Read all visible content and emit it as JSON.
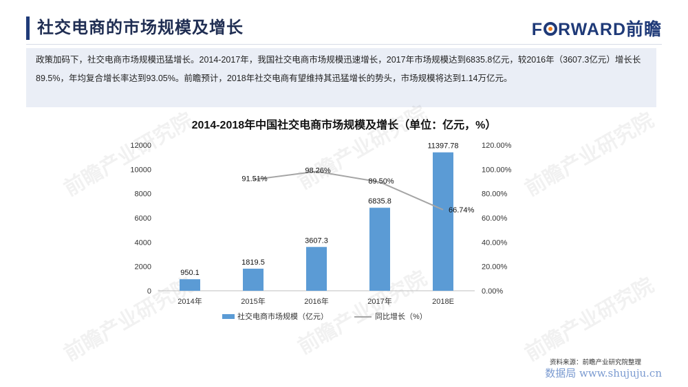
{
  "header": {
    "title": "社交电商的市场规模及增长",
    "logo_text_a": "F",
    "logo_text_b": "RWARD前瞻"
  },
  "summary": "政策加码下，社交电商市场规模迅猛增长。2014-2017年，我国社交电商市场规模迅速增长，2017年市场规模达到6835.8亿元，较2016年（3607.3亿元）增长长89.5%，年均复合增长率达到93.05%。前瞻预计，2018年社交电商有望维持其迅猛增长的势头，市场规模将达到1.14万亿元。",
  "chart_data": {
    "type": "bar",
    "title": "2014-2018年中国社交电商市场规模及增长（单位：亿元，%）",
    "categories": [
      "2014年",
      "2015年",
      "2016年",
      "2017年",
      "2018E"
    ],
    "series": [
      {
        "name": "社交电商市场规模（亿元）",
        "type": "bar",
        "axis": "left",
        "values": [
          950.1,
          1819.5,
          3607.3,
          6835.8,
          11397.78
        ],
        "labels": [
          "950.1",
          "1819.5",
          "3607.3",
          "6835.8",
          "11397.78"
        ]
      },
      {
        "name": "同比增长（%）",
        "type": "line",
        "axis": "right",
        "values": [
          null,
          91.51,
          98.26,
          89.5,
          66.74
        ],
        "labels": [
          "",
          "91.51%",
          "98.26%",
          "89.50%",
          "66.74%"
        ]
      }
    ],
    "ylim_left": [
      0,
      12000
    ],
    "yticks_left": [
      "0",
      "2000",
      "4000",
      "6000",
      "8000",
      "10000",
      "12000"
    ],
    "ylim_right": [
      0,
      120
    ],
    "yticks_right": [
      "0.00%",
      "20.00%",
      "40.00%",
      "60.00%",
      "80.00%",
      "100.00%",
      "120.00%"
    ],
    "legend_position": "bottom",
    "grid": false,
    "colors": {
      "bar": "#5b9bd5",
      "line": "#a5a5a5"
    }
  },
  "footer": {
    "source": "资料来源：前瞻产业研究院整理",
    "site": "数据局 www.shujuju.cn"
  },
  "watermark": "前瞻产业研究院"
}
